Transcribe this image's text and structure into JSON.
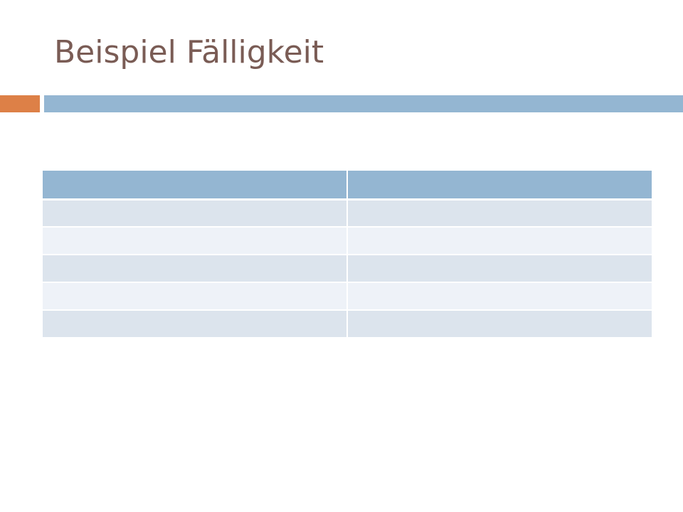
{
  "slide": {
    "title": "Beispiel Fälligkeit"
  },
  "theme": {
    "title_color": "#7a5c55",
    "accent_color": "#dd8047",
    "rule_color": "#94b6d2",
    "table_header_color": "#94b6d2",
    "table_band_dark": "#dce4ed",
    "table_band_light": "#eef2f8"
  },
  "table": {
    "header": [
      "",
      ""
    ],
    "rows": [
      [
        "",
        ""
      ],
      [
        "",
        ""
      ],
      [
        "",
        ""
      ],
      [
        "",
        ""
      ],
      [
        "",
        ""
      ]
    ]
  }
}
